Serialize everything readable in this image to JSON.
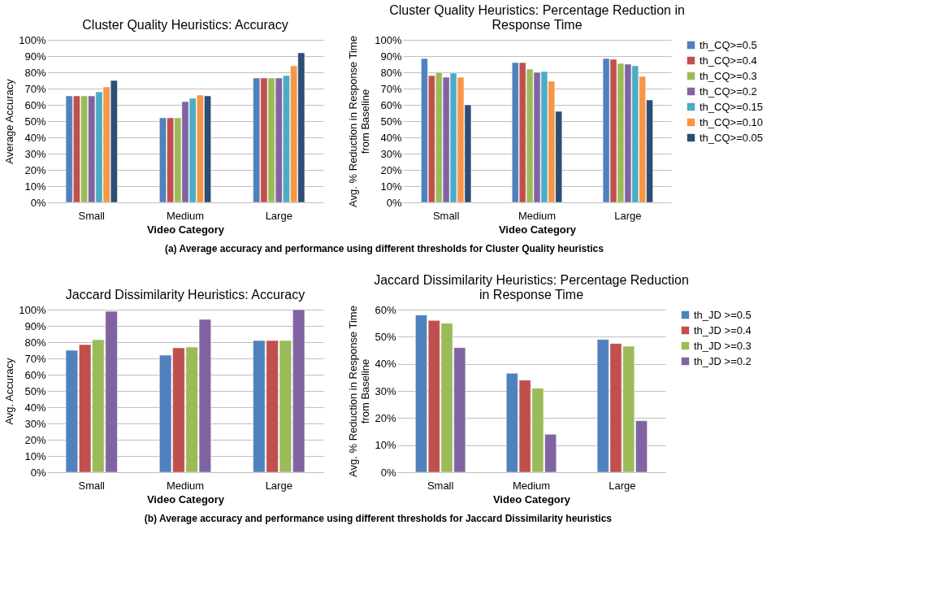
{
  "chart_data": [
    {
      "type": "bar",
      "title": "Cluster Quality Heuristics: Accuracy",
      "xlabel": "Video Category",
      "ylabel": "Average Accuracy",
      "categories": [
        "Small",
        "Medium",
        "Large"
      ],
      "ylim": [
        0,
        100
      ],
      "yticks": [
        {
          "value": 0,
          "label": "0%"
        },
        {
          "value": 10,
          "label": "10%"
        },
        {
          "value": 20,
          "label": "20%"
        },
        {
          "value": 30,
          "label": "30%"
        },
        {
          "value": 40,
          "label": "40%"
        },
        {
          "value": 50,
          "label": "50%"
        },
        {
          "value": 60,
          "label": "60%"
        },
        {
          "value": 70,
          "label": "70%"
        },
        {
          "value": 80,
          "label": "80%"
        },
        {
          "value": 90,
          "label": "90%"
        },
        {
          "value": 100,
          "label": "100%"
        }
      ],
      "grid": "y",
      "legend": false,
      "annotations": [
        "(a) Average accuracy and performance using different thresholds for Cluster Quality heuristics"
      ],
      "series": [
        {
          "color": "#4f81bd",
          "values": [
            65.5,
            52,
            76.5
          ]
        },
        {
          "color": "#c0504d",
          "values": [
            65.5,
            52,
            76.5
          ]
        },
        {
          "color": "#9bbb59",
          "values": [
            65.5,
            52,
            76.5
          ]
        },
        {
          "color": "#8064a2",
          "values": [
            65.5,
            62,
            76.5
          ]
        },
        {
          "color": "#4bacc6",
          "values": [
            68,
            64,
            78
          ]
        },
        {
          "color": "#f79646",
          "values": [
            71,
            66,
            84
          ]
        },
        {
          "color": "#2c4d75",
          "values": [
            75,
            65.5,
            92
          ]
        }
      ]
    },
    {
      "type": "bar",
      "title": "Cluster Quality Heuristics: Percentage Reduction in Response Time",
      "xlabel": "Video Category",
      "ylabel": "Avg. % Reduction in Response Time from Baseline",
      "categories": [
        "Small",
        "Medium",
        "Large"
      ],
      "ylim": [
        0,
        100
      ],
      "yticks": [
        {
          "value": 0,
          "label": "0%"
        },
        {
          "value": 10,
          "label": "10%"
        },
        {
          "value": 20,
          "label": "20%"
        },
        {
          "value": 30,
          "label": "30%"
        },
        {
          "value": 40,
          "label": "40%"
        },
        {
          "value": 50,
          "label": "50%"
        },
        {
          "value": 60,
          "label": "60%"
        },
        {
          "value": 70,
          "label": "70%"
        },
        {
          "value": 80,
          "label": "80%"
        },
        {
          "value": 90,
          "label": "90%"
        },
        {
          "value": 100,
          "label": "100%"
        }
      ],
      "grid": "y",
      "legend": "right",
      "series": [
        {
          "name": "th_CQ>=0.5",
          "color": "#4f81bd",
          "values": [
            88.5,
            86,
            88.5
          ]
        },
        {
          "name": "th_CQ>=0.4",
          "color": "#c0504d",
          "values": [
            78,
            86,
            88
          ]
        },
        {
          "name": "th_CQ>=0.3",
          "color": "#9bbb59",
          "values": [
            80,
            82,
            85.5
          ]
        },
        {
          "name": "th_CQ>=0.2",
          "color": "#8064a2",
          "values": [
            77,
            80,
            85
          ]
        },
        {
          "name": "th_CQ>=0.15",
          "color": "#4bacc6",
          "values": [
            79.5,
            80.5,
            84
          ]
        },
        {
          "name": "th_CQ>=0.10",
          "color": "#f79646",
          "values": [
            77,
            74.5,
            77.5
          ]
        },
        {
          "name": "th_CQ>=0.05",
          "color": "#2c4d75",
          "values": [
            60,
            56,
            63
          ]
        }
      ]
    },
    {
      "type": "bar",
      "title": "Jaccard Dissimilarity Heuristics: Accuracy",
      "xlabel": "Video Category",
      "ylabel": "Avg. Accuracy",
      "categories": [
        "Small",
        "Medium",
        "Large"
      ],
      "ylim": [
        0,
        100
      ],
      "yticks": [
        {
          "value": 0,
          "label": "0%"
        },
        {
          "value": 10,
          "label": "10%"
        },
        {
          "value": 20,
          "label": "20%"
        },
        {
          "value": 30,
          "label": "30%"
        },
        {
          "value": 40,
          "label": "40%"
        },
        {
          "value": 50,
          "label": "50%"
        },
        {
          "value": 60,
          "label": "60%"
        },
        {
          "value": 70,
          "label": "70%"
        },
        {
          "value": 80,
          "label": "80%"
        },
        {
          "value": 90,
          "label": "90%"
        },
        {
          "value": 100,
          "label": "100%"
        }
      ],
      "grid": "y",
      "legend": false,
      "annotations": [
        "(b) Average accuracy and performance using different thresholds for Jaccard Dissimilarity heuristics"
      ],
      "series": [
        {
          "color": "#4f81bd",
          "values": [
            75,
            72,
            81
          ]
        },
        {
          "color": "#c0504d",
          "values": [
            78.5,
            76.5,
            81
          ]
        },
        {
          "color": "#9bbb59",
          "values": [
            81.5,
            77,
            81
          ]
        },
        {
          "color": "#8064a2",
          "values": [
            99,
            94,
            100
          ]
        }
      ]
    },
    {
      "type": "bar",
      "title": "Jaccard Dissimilarity Heuristics: Percentage Reduction in Response Time",
      "xlabel": "Video Category",
      "ylabel": "Avg. % Reduction in Response Time from Baseline",
      "categories": [
        "Small",
        "Medium",
        "Large"
      ],
      "ylim": [
        0,
        60
      ],
      "yticks": [
        {
          "value": 0,
          "label": "0%"
        },
        {
          "value": 10,
          "label": "10%"
        },
        {
          "value": 20,
          "label": "20%"
        },
        {
          "value": 30,
          "label": "30%"
        },
        {
          "value": 40,
          "label": "40%"
        },
        {
          "value": 50,
          "label": "50%"
        },
        {
          "value": 60,
          "label": "60%"
        }
      ],
      "grid": "y",
      "legend": "right",
      "series": [
        {
          "name": "th_JD >=0.5",
          "color": "#4f81bd",
          "values": [
            58,
            36.5,
            49
          ]
        },
        {
          "name": "th_JD >=0.4",
          "color": "#c0504d",
          "values": [
            56,
            34,
            47.5
          ]
        },
        {
          "name": "th_JD >=0.3",
          "color": "#9bbb59",
          "values": [
            55,
            31,
            46.5
          ]
        },
        {
          "name": "th_JD >=0.2",
          "color": "#8064a2",
          "values": [
            46,
            14,
            19
          ]
        }
      ]
    }
  ]
}
